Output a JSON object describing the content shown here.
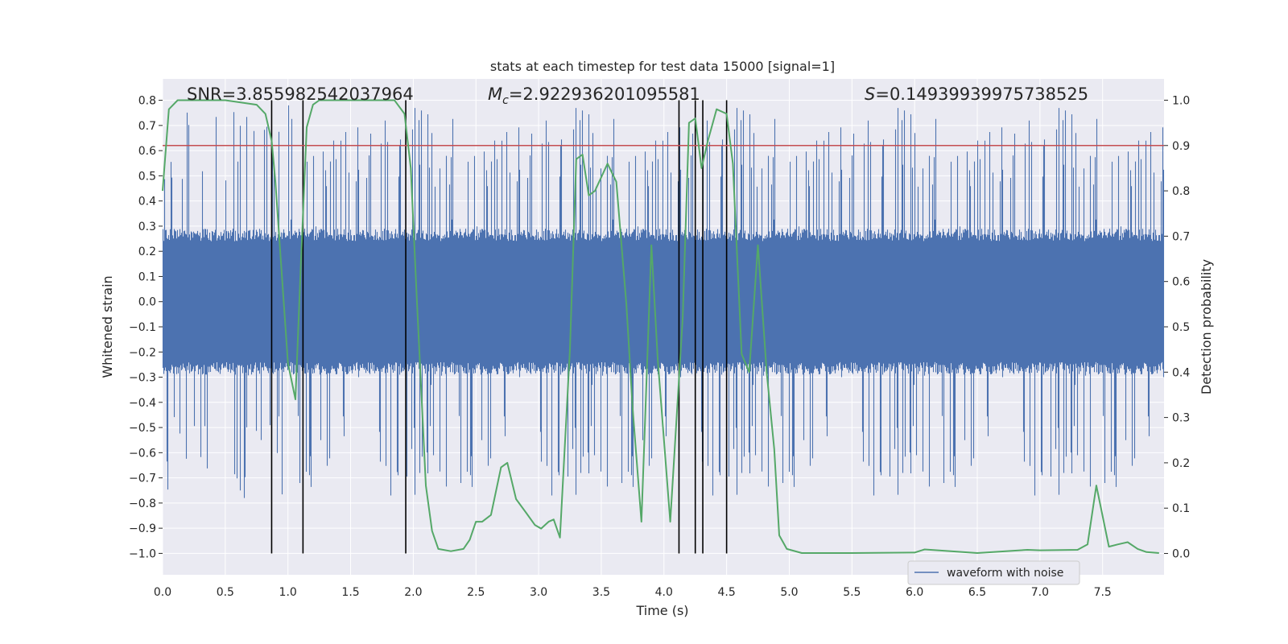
{
  "chart_data": {
    "type": "line",
    "title": "stats at each timestep for test data 15000 [signal=1]",
    "xlabel": "Time (s)",
    "ylabel": "Whitened strain",
    "y2label": "Detection probability",
    "xlim": [
      0.0,
      7.99
    ],
    "ylim": [
      -1.085,
      0.885
    ],
    "y2lim": [
      -0.047,
      1.047
    ],
    "x_ticks": [
      0.0,
      0.5,
      1.0,
      1.5,
      2.0,
      2.5,
      3.0,
      3.5,
      4.0,
      4.5,
      5.0,
      5.5,
      6.0,
      6.5,
      7.0,
      7.5
    ],
    "x_tick_labels": [
      "0.0",
      "0.5",
      "1.0",
      "1.5",
      "2.0",
      "2.5",
      "3.0",
      "3.5",
      "4.0",
      "4.5",
      "5.0",
      "5.5",
      "6.0",
      "6.5",
      "7.0",
      "7.5"
    ],
    "y_ticks": [
      0.8,
      0.7,
      0.6,
      0.5,
      0.4,
      0.3,
      0.2,
      0.1,
      0.0,
      -0.1,
      -0.2,
      -0.3,
      -0.4,
      -0.5,
      -0.6,
      -0.7,
      -0.8,
      -0.9,
      -1.0
    ],
    "y_tick_labels": [
      "0.8",
      "0.7",
      "0.6",
      "0.5",
      "0.4",
      "0.3",
      "0.2",
      "0.1",
      "0.0",
      "−0.1",
      "−0.2",
      "−0.3",
      "−0.4",
      "−0.5",
      "−0.6",
      "−0.7",
      "−0.8",
      "−0.9",
      "−1.0"
    ],
    "y2_ticks": [
      1.0,
      0.9,
      0.8,
      0.7,
      0.6,
      0.5,
      0.4,
      0.3,
      0.2,
      0.1,
      0.0
    ],
    "y2_tick_labels": [
      "1.0",
      "0.9",
      "0.8",
      "0.7",
      "0.6",
      "0.5",
      "0.4",
      "0.3",
      "0.2",
      "0.1",
      "0.0"
    ],
    "grid": true,
    "legend": {
      "entries": [
        "waveform with noise"
      ],
      "placement": "lower-right"
    },
    "annotations": {
      "snr": "SNR=3.855982542037964",
      "mc_symbol": "M",
      "mc_sub": "c",
      "mc_value": "=2.922936201095581",
      "s_symbol": "S",
      "s_value": "=0.14939939975738525"
    },
    "threshold": {
      "axis": "y2",
      "value": 0.9
    },
    "vertical_lines_x": [
      0.87,
      1.12,
      1.94,
      4.12,
      4.25,
      4.31,
      4.5
    ],
    "waveform": {
      "name": "waveform with noise",
      "sample_rate": 2048,
      "duration": 8.0,
      "envelope_rms": 0.28,
      "spike_threshold": 0.45
    },
    "series": [
      {
        "name": "detection probability",
        "axis": "y2",
        "x": [
          0.0,
          0.05,
          0.12,
          0.5,
          0.75,
          0.82,
          0.87,
          0.9,
          1.0,
          1.06,
          1.1,
          1.15,
          1.2,
          1.25,
          1.35,
          1.5,
          1.85,
          1.93,
          1.98,
          2.03,
          2.1,
          2.15,
          2.2,
          2.3,
          2.4,
          2.45,
          2.5,
          2.55,
          2.62,
          2.7,
          2.75,
          2.82,
          2.9,
          2.97,
          3.02,
          3.08,
          3.12,
          3.17,
          3.25,
          3.3,
          3.35,
          3.4,
          3.45,
          3.5,
          3.55,
          3.62,
          3.7,
          3.75,
          3.82,
          3.9,
          3.95,
          4.05,
          4.15,
          4.2,
          4.25,
          4.3,
          4.35,
          4.42,
          4.5,
          4.55,
          4.62,
          4.68,
          4.75,
          4.82,
          4.88,
          4.92,
          4.98,
          5.1,
          5.5,
          6.0,
          6.08,
          6.5,
          6.9,
          7.0,
          7.3,
          7.38,
          7.45,
          7.55,
          7.62,
          7.7,
          7.78,
          7.85,
          7.95
        ],
        "y": [
          0.8,
          0.98,
          1.0,
          1.0,
          0.99,
          0.97,
          0.91,
          0.82,
          0.42,
          0.34,
          0.62,
          0.94,
          0.99,
          1.0,
          1.0,
          1.0,
          1.0,
          0.97,
          0.85,
          0.55,
          0.15,
          0.05,
          0.01,
          0.005,
          0.01,
          0.03,
          0.07,
          0.07,
          0.085,
          0.19,
          0.2,
          0.12,
          0.09,
          0.063,
          0.055,
          0.07,
          0.075,
          0.035,
          0.45,
          0.87,
          0.88,
          0.79,
          0.8,
          0.83,
          0.86,
          0.82,
          0.55,
          0.32,
          0.07,
          0.68,
          0.43,
          0.07,
          0.52,
          0.95,
          0.96,
          0.85,
          0.91,
          0.98,
          0.97,
          0.86,
          0.44,
          0.4,
          0.68,
          0.4,
          0.23,
          0.04,
          0.01,
          0.001,
          0.001,
          0.002,
          0.009,
          0.001,
          0.008,
          0.007,
          0.008,
          0.02,
          0.15,
          0.015,
          0.02,
          0.025,
          0.01,
          0.003,
          0.001
        ]
      }
    ]
  }
}
